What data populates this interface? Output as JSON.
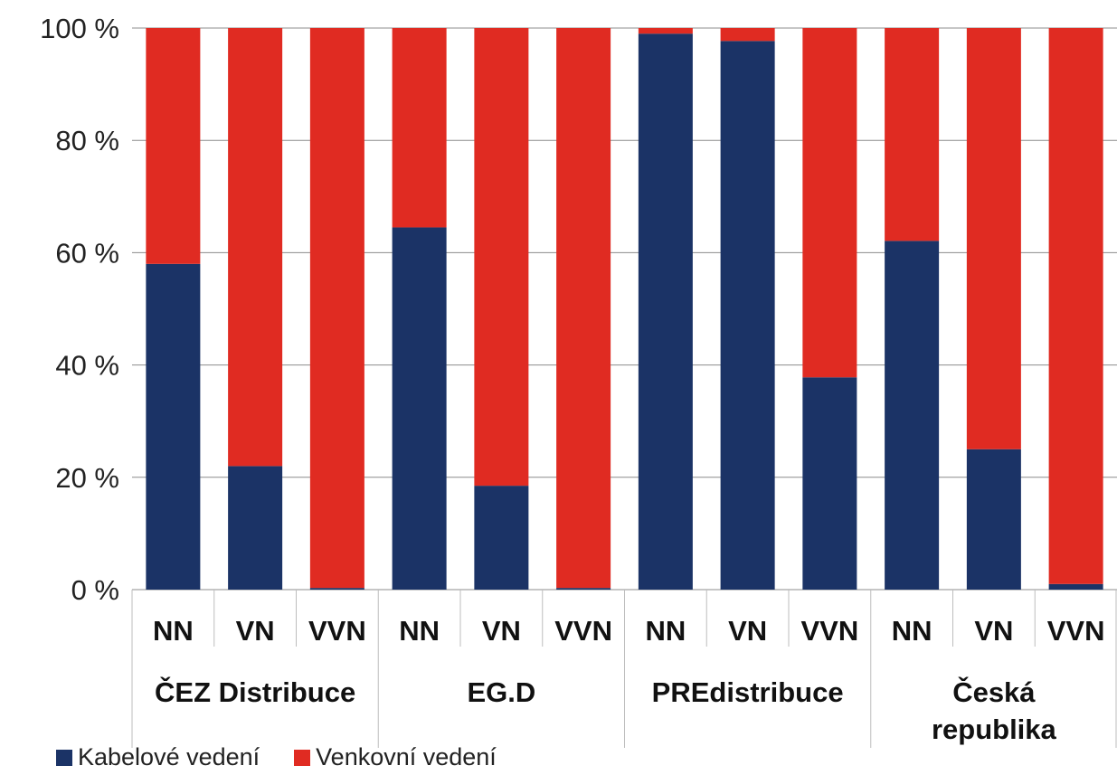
{
  "chart_data": {
    "type": "bar",
    "stacked": true,
    "percent": true,
    "groups": [
      {
        "label": "ČEZ Distribuce",
        "label_lines": [
          "ČEZ Distribuce"
        ],
        "categories": [
          "NN",
          "VN",
          "VVN"
        ]
      },
      {
        "label": "EG.D",
        "label_lines": [
          "EG.D"
        ],
        "categories": [
          "NN",
          "VN",
          "VVN"
        ]
      },
      {
        "label": "PREdistribuce",
        "label_lines": [
          "PREdistribuce"
        ],
        "categories": [
          "NN",
          "VN",
          "VVN"
        ]
      },
      {
        "label": "Česká republika",
        "label_lines": [
          "Česká",
          "republika"
        ],
        "categories": [
          "NN",
          "VN",
          "VVN"
        ]
      }
    ],
    "series": [
      {
        "name": "Kabelové vedení",
        "color": "#1b3366",
        "values": [
          58,
          22,
          0.3,
          64.5,
          18.5,
          0.3,
          99,
          97.7,
          37.8,
          62.1,
          25,
          1
        ]
      },
      {
        "name": "Venkovní vedení",
        "color": "#e02b22",
        "values": [
          42,
          78,
          99.7,
          35.5,
          81.5,
          99.7,
          1,
          2.3,
          62.2,
          37.9,
          75,
          99
        ]
      }
    ],
    "yticks": [
      "0 %",
      "20 %",
      "40 %",
      "60 %",
      "80 %",
      "100 %"
    ],
    "ylim": [
      0,
      100
    ],
    "grid": true,
    "legend_position": "bottom-left"
  }
}
